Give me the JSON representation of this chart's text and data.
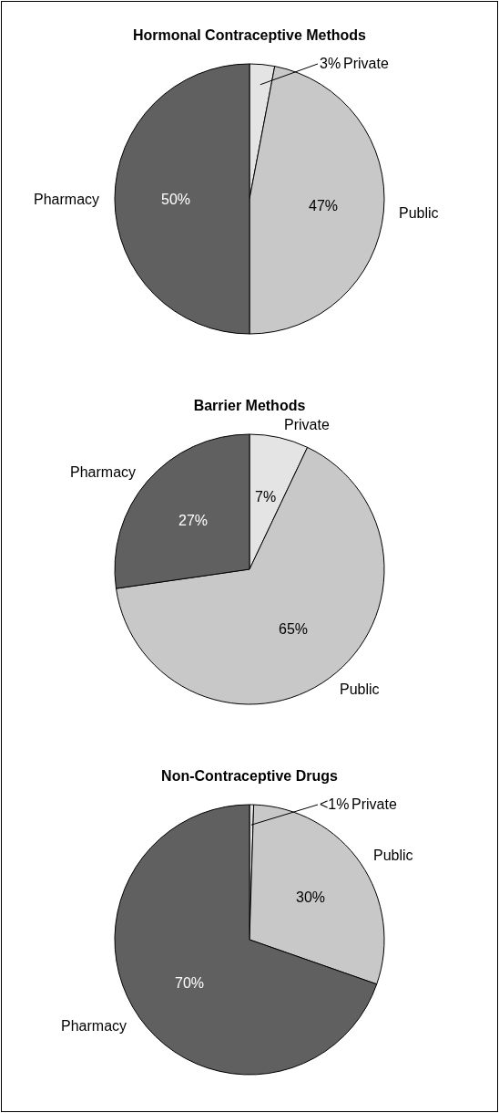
{
  "chart_data": [
    {
      "type": "pie",
      "title": "Hormonal Contraceptive Methods",
      "categories": [
        "Private",
        "Public",
        "Pharmacy"
      ],
      "values": [
        3,
        47,
        50
      ],
      "colors": [
        "#e4e4e4",
        "#c8c8c8",
        "#606060"
      ],
      "value_labels": [
        "3%",
        "47%",
        "50%"
      ]
    },
    {
      "type": "pie",
      "title": "Barrier Methods",
      "categories": [
        "Private",
        "Public",
        "Pharmacy"
      ],
      "values": [
        7,
        65,
        27
      ],
      "colors": [
        "#e4e4e4",
        "#c8c8c8",
        "#606060"
      ],
      "value_labels": [
        "7%",
        "65%",
        "27%"
      ]
    },
    {
      "type": "pie",
      "title": "Non-Contraceptive Drugs",
      "categories": [
        "Private",
        "Public",
        "Pharmacy"
      ],
      "values": [
        0.5,
        30,
        70
      ],
      "colors": [
        "#e4e4e4",
        "#c8c8c8",
        "#606060"
      ],
      "value_labels": [
        "<1%",
        "30%",
        "70%"
      ]
    }
  ]
}
